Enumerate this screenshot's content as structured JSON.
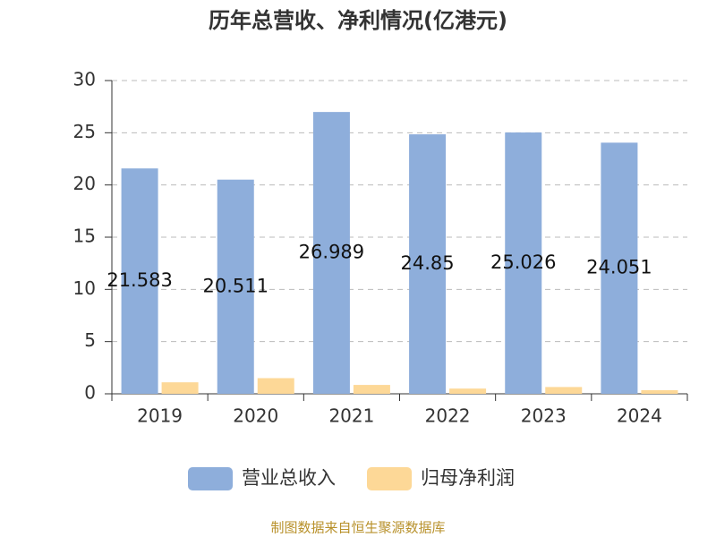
{
  "chart_data": {
    "type": "bar",
    "title": "历年总营收、净利情况(亿港元)",
    "categories": [
      "2019",
      "2020",
      "2021",
      "2022",
      "2023",
      "2024"
    ],
    "series": [
      {
        "name": "营业总收入",
        "color": "#8eaedb",
        "values": [
          21.583,
          20.511,
          26.989,
          24.85,
          25.026,
          24.051
        ]
      },
      {
        "name": "归母净利润",
        "color": "#fdd897",
        "values": [
          1.1,
          1.5,
          0.85,
          0.5,
          0.65,
          0.35
        ]
      }
    ],
    "ylim": [
      0,
      30
    ],
    "yticks": [
      0,
      5,
      10,
      15,
      20,
      25,
      30
    ],
    "grid": true,
    "source": "制图数据来自恒生聚源数据库"
  }
}
